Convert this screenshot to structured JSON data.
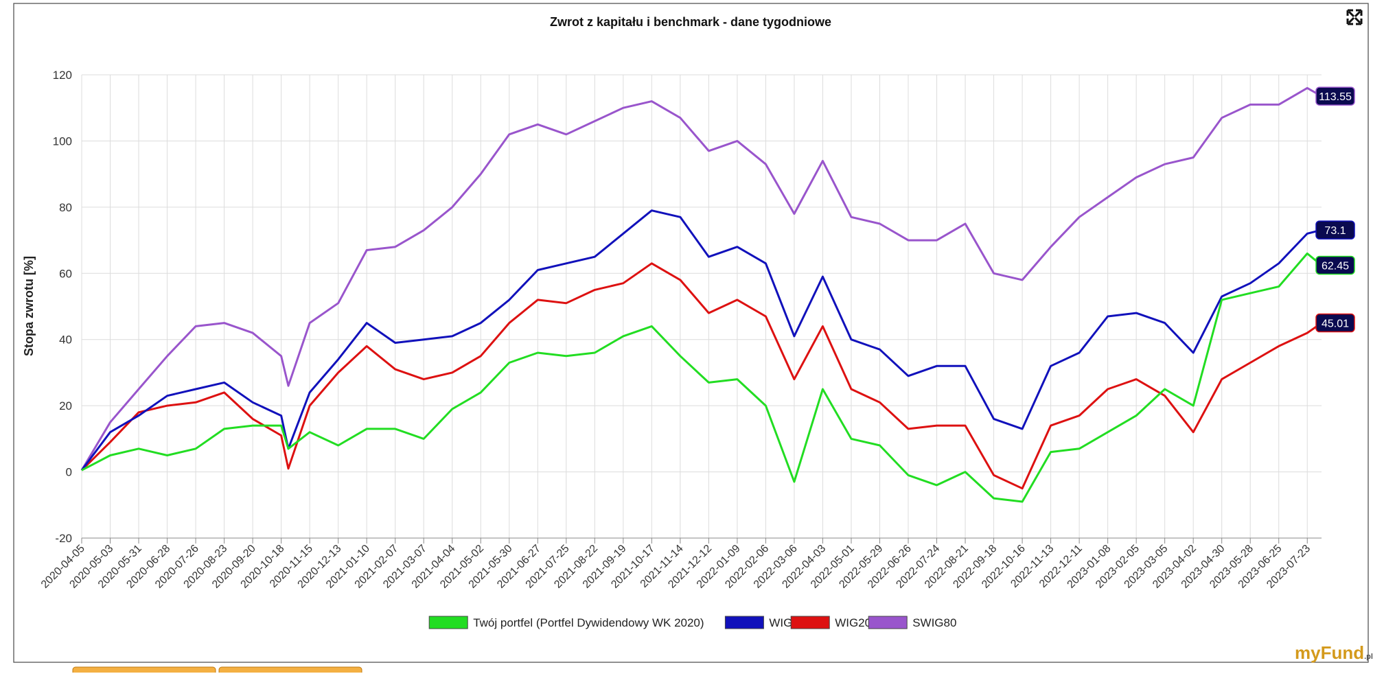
{
  "chart_data": {
    "type": "line",
    "title": "Zwrot z kapitału i benchmark - dane tygodniowe",
    "ylabel": "Stopa zwrotu [%]",
    "logo": "myFund",
    "logo_suffix": ".pl",
    "x": [
      "2020-04-05",
      "2020-05-03",
      "2020-05-31",
      "2020-06-28",
      "2020-07-26",
      "2020-08-23",
      "2020-09-20",
      "2020-10-18",
      "2020-10-25",
      "2020-11-15",
      "2020-12-13",
      "2021-01-10",
      "2021-02-07",
      "2021-03-07",
      "2021-04-04",
      "2021-05-02",
      "2021-05-30",
      "2021-06-27",
      "2021-07-25",
      "2021-08-22",
      "2021-09-19",
      "2021-10-17",
      "2021-11-14",
      "2021-12-12",
      "2022-01-09",
      "2022-02-06",
      "2022-03-06",
      "2022-04-03",
      "2022-05-01",
      "2022-05-29",
      "2022-06-26",
      "2022-07-24",
      "2022-08-21",
      "2022-09-18",
      "2022-10-16",
      "2022-11-13",
      "2022-12-11",
      "2023-01-08",
      "2023-02-05",
      "2023-03-05",
      "2023-04-02",
      "2023-04-30",
      "2023-05-28",
      "2023-06-25",
      "2023-07-23",
      "2023-08-06"
    ],
    "series": [
      {
        "name": "Twój portfel (Portfel Dywidendowy WK 2020)",
        "color": "#22dd22",
        "values": [
          0.5,
          5,
          7,
          5,
          7,
          13,
          14,
          14,
          7,
          12,
          8,
          13,
          13,
          10,
          19,
          24,
          33,
          36,
          35,
          36,
          41,
          44,
          35,
          27,
          28,
          20,
          -3,
          25,
          10,
          8,
          -1,
          -4,
          0,
          -8,
          -9,
          6,
          7,
          12,
          17,
          25,
          20,
          52,
          54,
          56,
          66,
          62.45
        ]
      },
      {
        "name": "WIG",
        "color": "#1111bb",
        "values": [
          0.5,
          12,
          17,
          23,
          25,
          27,
          21,
          17,
          7,
          24,
          34,
          45,
          39,
          40,
          41,
          45,
          52,
          61,
          63,
          65,
          72,
          79,
          77,
          65,
          68,
          63,
          41,
          59,
          40,
          37,
          29,
          32,
          32,
          16,
          13,
          32,
          36,
          47,
          48,
          45,
          36,
          53,
          57,
          63,
          72,
          73.1
        ]
      },
      {
        "name": "WIG20",
        "color": "#dd1111",
        "values": [
          0.5,
          9,
          18,
          20,
          21,
          24,
          16,
          11,
          1,
          20,
          30,
          38,
          31,
          28,
          30,
          35,
          45,
          52,
          51,
          55,
          57,
          63,
          58,
          48,
          52,
          47,
          28,
          44,
          25,
          21,
          13,
          14,
          14,
          -1,
          -5,
          14,
          17,
          25,
          28,
          23,
          12,
          28,
          33,
          38,
          42,
          45.01
        ]
      },
      {
        "name": "SWIG80",
        "color": "#9955cc",
        "values": [
          0.5,
          15,
          25,
          35,
          44,
          45,
          42,
          35,
          26,
          45,
          51,
          67,
          68,
          73,
          80,
          90,
          102,
          105,
          102,
          106,
          110,
          112,
          107,
          97,
          100,
          93,
          78,
          94,
          77,
          75,
          70,
          70,
          75,
          60,
          58,
          68,
          77,
          83,
          89,
          93,
          95,
          107,
          111,
          111,
          116,
          113.55
        ]
      }
    ],
    "xticks": [
      "2020-04-05",
      "2020-05-03",
      "2020-05-31",
      "2020-06-28",
      "2020-07-26",
      "2020-08-23",
      "2020-09-20",
      "2020-10-18",
      "2020-11-15",
      "2020-12-13",
      "2021-01-10",
      "2021-02-07",
      "2021-03-07",
      "2021-04-04",
      "2021-05-02",
      "2021-05-30",
      "2021-06-27",
      "2021-07-25",
      "2021-08-22",
      "2021-09-19",
      "2021-10-17",
      "2021-11-14",
      "2021-12-12",
      "2022-01-09",
      "2022-02-06",
      "2022-03-06",
      "2022-04-03",
      "2022-05-01",
      "2022-05-29",
      "2022-06-26",
      "2022-07-24",
      "2022-08-21",
      "2022-09-18",
      "2022-10-16",
      "2022-11-13",
      "2022-12-11",
      "2023-01-08",
      "2023-02-05",
      "2023-03-05",
      "2023-04-02",
      "2023-04-30",
      "2023-05-28",
      "2023-06-25",
      "2023-07-23"
    ],
    "xlim": [
      "2020-04-05",
      "2023-08-06"
    ],
    "ylim": [
      -20,
      120
    ],
    "yticks": [
      -20,
      0,
      20,
      40,
      60,
      80,
      100,
      120
    ],
    "grid": true
  }
}
